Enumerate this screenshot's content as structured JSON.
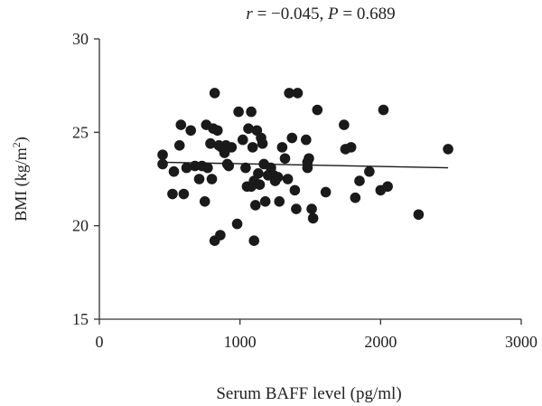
{
  "chart_data": {
    "type": "scatter",
    "title": {
      "r_symbol": "r",
      "r_value": " = −0.045, ",
      "p_symbol": "P",
      "p_value": " = 0.689"
    },
    "xlabel": "Serum BAFF level (pg/ml)",
    "ylabel": {
      "prefix": "BMI (kg/m",
      "sup": "2",
      "suffix": ")"
    },
    "xlim": [
      0,
      3000
    ],
    "ylim": [
      15,
      30
    ],
    "xticks": [
      {
        "value": 0,
        "label": "0"
      },
      {
        "value": 1000,
        "label": "1000"
      },
      {
        "value": 2000,
        "label": "2000"
      },
      {
        "value": 3000,
        "label": "3000"
      }
    ],
    "yticks": [
      {
        "value": 15,
        "label": "15"
      },
      {
        "value": 20,
        "label": "20"
      },
      {
        "value": 25,
        "label": "25"
      },
      {
        "value": 30,
        "label": "30"
      }
    ],
    "grid": false,
    "trendline": {
      "x": [
        450,
        2480
      ],
      "y": [
        23.4,
        23.1
      ]
    },
    "colors": {
      "points": "#1a1a1a",
      "line": "#1a1a1a",
      "axis": "#333333"
    },
    "points": [
      {
        "x": 450,
        "y": 23.8
      },
      {
        "x": 450,
        "y": 23.3
      },
      {
        "x": 520,
        "y": 21.7
      },
      {
        "x": 530,
        "y": 22.9
      },
      {
        "x": 570,
        "y": 24.3
      },
      {
        "x": 580,
        "y": 25.4
      },
      {
        "x": 600,
        "y": 21.7
      },
      {
        "x": 620,
        "y": 23.1
      },
      {
        "x": 650,
        "y": 25.1
      },
      {
        "x": 680,
        "y": 23.2
      },
      {
        "x": 710,
        "y": 22.5
      },
      {
        "x": 730,
        "y": 23.2
      },
      {
        "x": 750,
        "y": 21.3
      },
      {
        "x": 760,
        "y": 25.4
      },
      {
        "x": 770,
        "y": 23.1
      },
      {
        "x": 790,
        "y": 24.4
      },
      {
        "x": 800,
        "y": 22.5
      },
      {
        "x": 810,
        "y": 25.2
      },
      {
        "x": 820,
        "y": 27.1
      },
      {
        "x": 820,
        "y": 19.2
      },
      {
        "x": 840,
        "y": 25.1
      },
      {
        "x": 850,
        "y": 24.3
      },
      {
        "x": 860,
        "y": 19.5
      },
      {
        "x": 870,
        "y": 24.2
      },
      {
        "x": 890,
        "y": 23.9
      },
      {
        "x": 900,
        "y": 24.3
      },
      {
        "x": 910,
        "y": 23.3
      },
      {
        "x": 920,
        "y": 23.2
      },
      {
        "x": 940,
        "y": 24.2
      },
      {
        "x": 980,
        "y": 20.1
      },
      {
        "x": 990,
        "y": 26.1
      },
      {
        "x": 1020,
        "y": 24.6
      },
      {
        "x": 1040,
        "y": 23.1
      },
      {
        "x": 1050,
        "y": 22.1
      },
      {
        "x": 1060,
        "y": 25.2
      },
      {
        "x": 1080,
        "y": 26.1
      },
      {
        "x": 1080,
        "y": 22.1
      },
      {
        "x": 1090,
        "y": 24.2
      },
      {
        "x": 1100,
        "y": 22.4
      },
      {
        "x": 1100,
        "y": 19.2
      },
      {
        "x": 1110,
        "y": 21.1
      },
      {
        "x": 1120,
        "y": 25.1
      },
      {
        "x": 1130,
        "y": 22.8
      },
      {
        "x": 1140,
        "y": 22.2
      },
      {
        "x": 1150,
        "y": 24.7
      },
      {
        "x": 1160,
        "y": 24.4
      },
      {
        "x": 1170,
        "y": 23.3
      },
      {
        "x": 1180,
        "y": 21.3
      },
      {
        "x": 1200,
        "y": 22.7
      },
      {
        "x": 1220,
        "y": 23.1
      },
      {
        "x": 1240,
        "y": 22.7
      },
      {
        "x": 1250,
        "y": 22.4
      },
      {
        "x": 1270,
        "y": 22.6
      },
      {
        "x": 1280,
        "y": 21.3
      },
      {
        "x": 1300,
        "y": 24.2
      },
      {
        "x": 1320,
        "y": 23.6
      },
      {
        "x": 1340,
        "y": 22.5
      },
      {
        "x": 1350,
        "y": 27.1
      },
      {
        "x": 1370,
        "y": 24.7
      },
      {
        "x": 1390,
        "y": 21.9
      },
      {
        "x": 1400,
        "y": 20.9
      },
      {
        "x": 1410,
        "y": 27.1
      },
      {
        "x": 1470,
        "y": 24.6
      },
      {
        "x": 1480,
        "y": 23.4
      },
      {
        "x": 1480,
        "y": 23.1
      },
      {
        "x": 1490,
        "y": 23.6
      },
      {
        "x": 1510,
        "y": 20.9
      },
      {
        "x": 1520,
        "y": 20.4
      },
      {
        "x": 1550,
        "y": 26.2
      },
      {
        "x": 1610,
        "y": 21.8
      },
      {
        "x": 1740,
        "y": 25.4
      },
      {
        "x": 1750,
        "y": 24.1
      },
      {
        "x": 1790,
        "y": 24.2
      },
      {
        "x": 1820,
        "y": 21.5
      },
      {
        "x": 1850,
        "y": 22.4
      },
      {
        "x": 1920,
        "y": 22.9
      },
      {
        "x": 2000,
        "y": 21.9
      },
      {
        "x": 2020,
        "y": 26.2
      },
      {
        "x": 2050,
        "y": 22.1
      },
      {
        "x": 2270,
        "y": 20.6
      },
      {
        "x": 2480,
        "y": 24.1
      }
    ]
  }
}
